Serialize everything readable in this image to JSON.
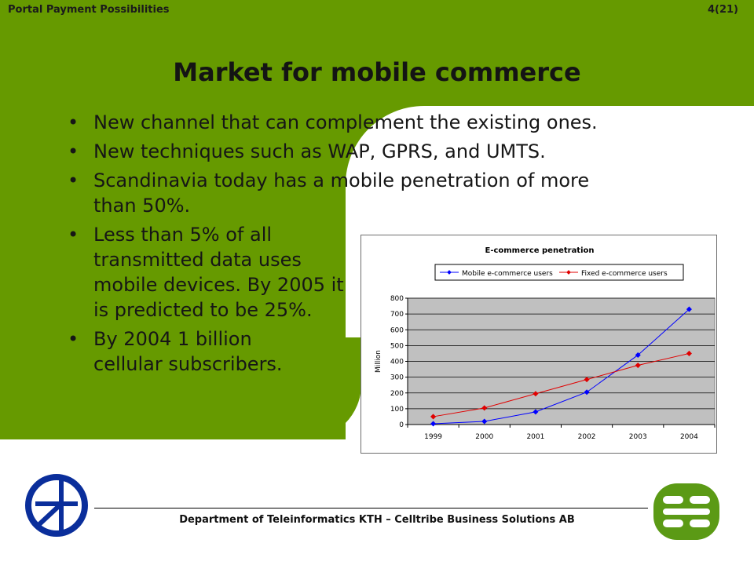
{
  "slide": {
    "header_left": "Portal Payment Possibilities",
    "page_number": "4(21)",
    "title": "Market for mobile commerce",
    "bullets": [
      "New channel that can complement the existing ones.",
      "New techniques such as WAP, GPRS, and UMTS.",
      "Scandinavia today has a mobile penetration of more than 50%.",
      "Less than 5% of all transmitted data uses mobile devices. By 2005 it is predicted to be 25%.",
      "By 2004 1 billion cellular subscribers."
    ],
    "footer": "Department of Teleinformatics KTH – Celltribe Business Solutions AB",
    "colors": {
      "green": "#669a00",
      "logo_blue": "#0a2e9b",
      "logo_green": "#5b9a15"
    },
    "icons": {
      "left_logo": "kth-logo-icon",
      "right_logo": "celltribe-logo-icon"
    }
  },
  "chart_data": {
    "type": "line",
    "title": "E-commerce penetration",
    "xlabel": "",
    "ylabel": "Million",
    "categories": [
      "1999",
      "2000",
      "2001",
      "2002",
      "2003",
      "2004"
    ],
    "ylim": [
      0,
      800
    ],
    "yticks": [
      "0",
      "100",
      "200",
      "300",
      "400",
      "500",
      "600",
      "700",
      "800"
    ],
    "grid": true,
    "legend": "top",
    "series": [
      {
        "name": "Mobile e-commerce users",
        "color": "#0000ff",
        "values": [
          5,
          20,
          80,
          205,
          440,
          730
        ]
      },
      {
        "name": "Fixed e-commerce users",
        "color": "#e00000",
        "values": [
          50,
          105,
          195,
          285,
          375,
          450
        ]
      }
    ]
  }
}
